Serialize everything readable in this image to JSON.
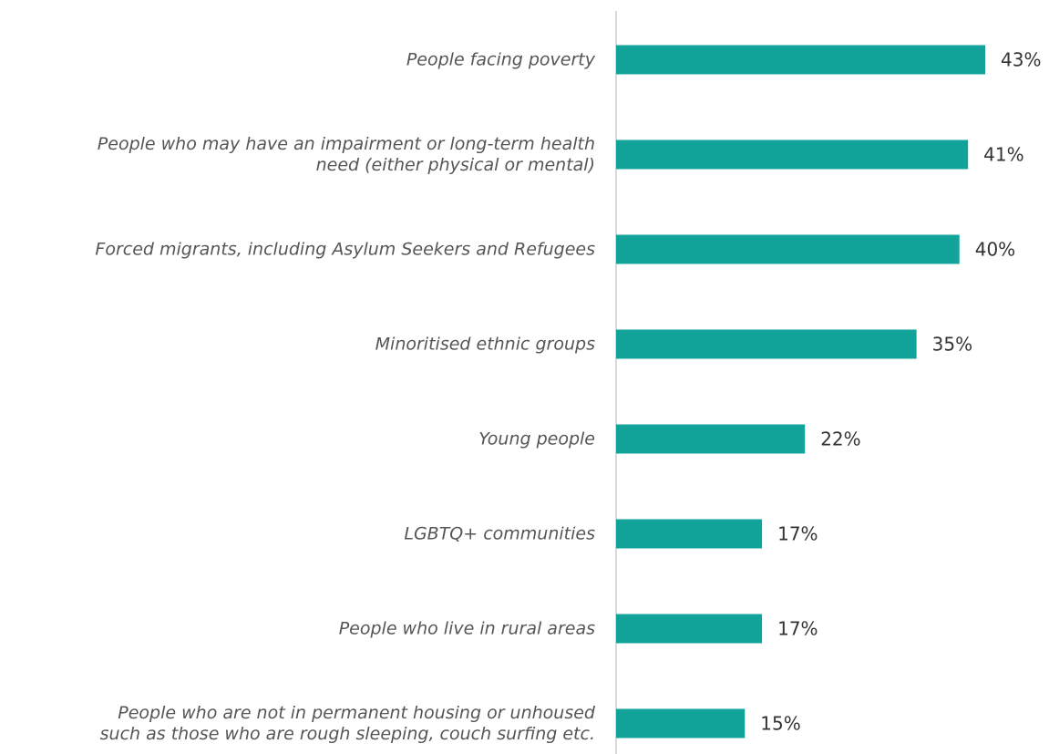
{
  "chart_data": {
    "type": "bar",
    "orientation": "horizontal",
    "categories": [
      [
        "People facing poverty"
      ],
      [
        "People who may have an impairment or long-term health",
        "need (either physical or mental)"
      ],
      [
        "Forced migrants, including Asylum Seekers and Refugees"
      ],
      [
        "Minoritised ethnic groups"
      ],
      [
        "Young people"
      ],
      [
        "LGBTQ+ communities"
      ],
      [
        "People who live in rural areas"
      ],
      [
        "People who are not in permanent housing or unhoused",
        "such as those who are rough sleeping, couch surfing etc."
      ]
    ],
    "values": [
      43,
      41,
      40,
      35,
      22,
      17,
      17,
      15
    ],
    "value_labels": [
      "43%",
      "41%",
      "40%",
      "35%",
      "22%",
      "17%",
      "17%",
      "15%"
    ],
    "value_suffix": "%",
    "bar_color": "#12a39a",
    "title": "",
    "xlabel": "",
    "ylabel": "",
    "grid": false,
    "legend": "none"
  }
}
